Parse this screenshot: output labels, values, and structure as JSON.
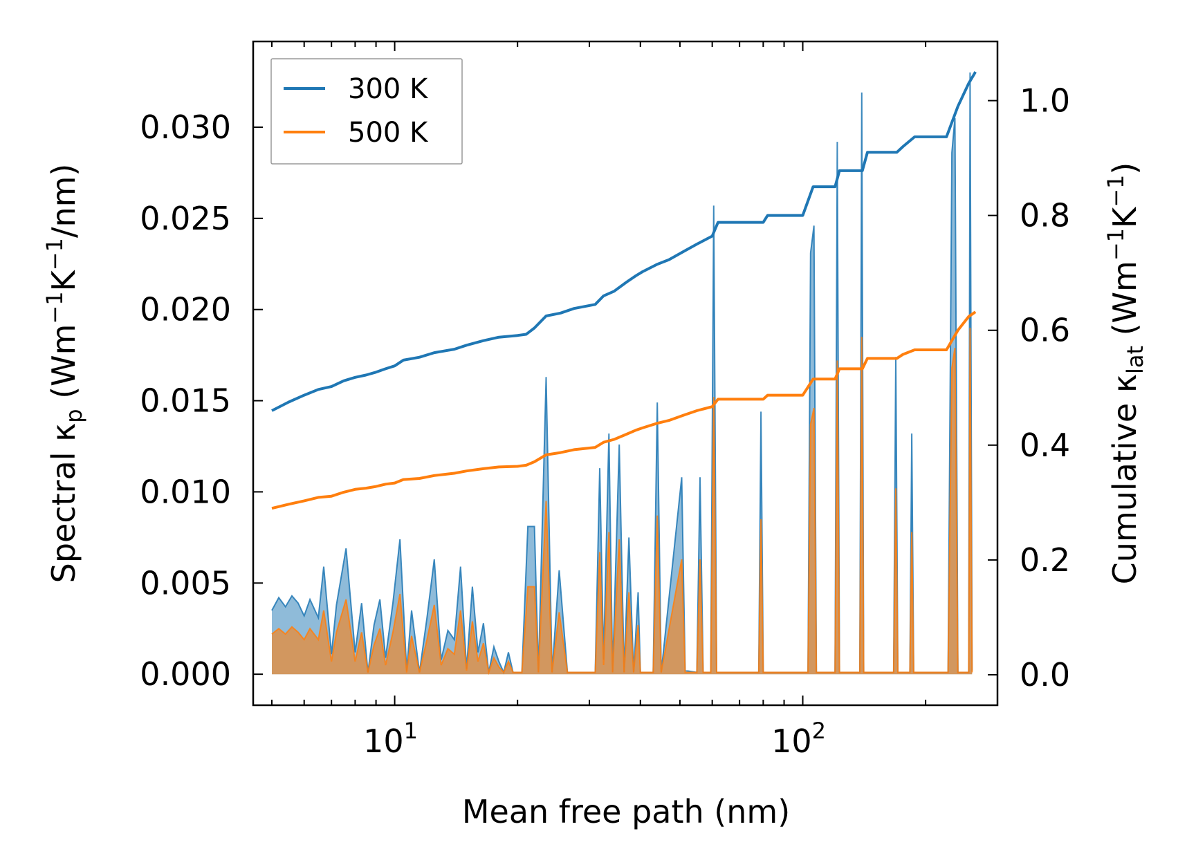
{
  "chart_data": {
    "type": "line",
    "x_scale": "log",
    "xlabel": "Mean free path (nm)",
    "xlim": [
      4.5,
      300
    ],
    "x_ticks": [
      {
        "value": 10,
        "base": "10",
        "exp": "1"
      },
      {
        "value": 100,
        "base": "10",
        "exp": "2"
      }
    ],
    "left_axis": {
      "label_parts": {
        "main": "Spectral κ",
        "sub": "p",
        "unit_pre": " (Wm",
        "sup1": "−1",
        "mid": "K",
        "sup2": "−1",
        "unit_post": "/nm)"
      },
      "ylim": [
        -0.0017,
        0.0347
      ],
      "ticks": [
        0.0,
        0.005,
        0.01,
        0.015,
        0.02,
        0.025,
        0.03
      ],
      "tick_labels": [
        "0.000",
        "0.005",
        "0.010",
        "0.015",
        "0.020",
        "0.025",
        "0.030"
      ]
    },
    "right_axis": {
      "label_parts": {
        "main": "Cumulative κ",
        "sub": "lat",
        "unit_pre": " (Wm",
        "sup1": "−1",
        "mid": "K",
        "sup2": "−1",
        "unit_post": ")"
      },
      "ylim": [
        -0.053,
        1.103
      ],
      "ticks": [
        0.0,
        0.2,
        0.4,
        0.6,
        0.8,
        1.0
      ],
      "tick_labels": [
        "0.0",
        "0.2",
        "0.4",
        "0.6",
        "0.8",
        "1.0"
      ]
    },
    "legend": {
      "position": "top-left",
      "entries": [
        "300 K",
        "500 K"
      ]
    },
    "series": [
      {
        "name": "300 K",
        "color": "#1f77b4",
        "cumulative": [
          [
            5.0,
            0.46
          ],
          [
            5.5,
            0.475
          ],
          [
            6.0,
            0.487
          ],
          [
            6.5,
            0.497
          ],
          [
            7.0,
            0.502
          ],
          [
            7.5,
            0.512
          ],
          [
            8.0,
            0.518
          ],
          [
            8.5,
            0.522
          ],
          [
            9.0,
            0.527
          ],
          [
            9.5,
            0.533
          ],
          [
            10.0,
            0.538
          ],
          [
            10.5,
            0.548
          ],
          [
            11.5,
            0.553
          ],
          [
            12.5,
            0.561
          ],
          [
            14.0,
            0.567
          ],
          [
            15.0,
            0.574
          ],
          [
            16.5,
            0.582
          ],
          [
            18.0,
            0.588
          ],
          [
            20.0,
            0.591
          ],
          [
            21.0,
            0.593
          ],
          [
            22.0,
            0.604
          ],
          [
            23.5,
            0.625
          ],
          [
            25.5,
            0.63
          ],
          [
            27.5,
            0.638
          ],
          [
            31.0,
            0.645
          ],
          [
            32.5,
            0.66
          ],
          [
            34.5,
            0.668
          ],
          [
            37.0,
            0.684
          ],
          [
            39.0,
            0.695
          ],
          [
            40.5,
            0.702
          ],
          [
            44.0,
            0.715
          ],
          [
            47.0,
            0.723
          ],
          [
            51.0,
            0.737
          ],
          [
            55.0,
            0.75
          ],
          [
            60.0,
            0.764
          ],
          [
            62.0,
            0.788
          ],
          [
            80.0,
            0.788
          ],
          [
            82.0,
            0.8
          ],
          [
            100.0,
            0.8
          ],
          [
            106.0,
            0.85
          ],
          [
            120.0,
            0.85
          ],
          [
            123.0,
            0.878
          ],
          [
            140.0,
            0.878
          ],
          [
            144.0,
            0.91
          ],
          [
            170.0,
            0.91
          ],
          [
            176.0,
            0.92
          ],
          [
            188.0,
            0.937
          ],
          [
            225.0,
            0.937
          ],
          [
            240.0,
            0.99
          ],
          [
            255.0,
            1.03
          ],
          [
            265.0,
            1.05
          ]
        ],
        "spectral": [
          [
            5.0,
            0.0035
          ],
          [
            5.2,
            0.0042
          ],
          [
            5.4,
            0.0037
          ],
          [
            5.6,
            0.0043
          ],
          [
            5.8,
            0.0039
          ],
          [
            6.0,
            0.0032
          ],
          [
            6.2,
            0.0041
          ],
          [
            6.5,
            0.0031
          ],
          [
            6.7,
            0.0059
          ],
          [
            7.0,
            0.0011
          ],
          [
            7.2,
            0.0038
          ],
          [
            7.6,
            0.0069
          ],
          [
            8.0,
            0.0012
          ],
          [
            8.3,
            0.0039
          ],
          [
            8.6,
            0.0001
          ],
          [
            8.9,
            0.0027
          ],
          [
            9.2,
            0.0041
          ],
          [
            9.5,
            0.0009
          ],
          [
            9.9,
            0.0039
          ],
          [
            10.3,
            0.0074
          ],
          [
            10.7,
            0.0002
          ],
          [
            11.0,
            0.0035
          ],
          [
            11.5,
            0.0001
          ],
          [
            12.0,
            0.0031
          ],
          [
            12.5,
            0.0063
          ],
          [
            13.0,
            0.0008
          ],
          [
            13.5,
            0.0024
          ],
          [
            14.0,
            0.0019
          ],
          [
            14.5,
            0.0059
          ],
          [
            15.0,
            0.0003
          ],
          [
            15.5,
            0.0048
          ],
          [
            16.0,
            0.0012
          ],
          [
            16.5,
            0.0028
          ],
          [
            17.0,
            0.0001
          ],
          [
            17.5,
            0.0015
          ],
          [
            18.0,
            0.0007
          ],
          [
            18.5,
            0.0001
          ],
          [
            19.0,
            0.0012
          ],
          [
            19.5,
            0.0001
          ],
          [
            20.5,
            0.0001
          ],
          [
            21.2,
            0.0081
          ],
          [
            22.0,
            0.0081
          ],
          [
            22.5,
            0.0001
          ],
          [
            23.5,
            0.0163
          ],
          [
            24.3,
            0.0001
          ],
          [
            25.3,
            0.0057
          ],
          [
            26.5,
            0.0001
          ],
          [
            27.0,
            0.0001
          ],
          [
            31.0,
            0.0001
          ],
          [
            31.8,
            0.0113
          ],
          [
            32.5,
            0.0008
          ],
          [
            33.5,
            0.0132
          ],
          [
            34.2,
            0.0001
          ],
          [
            35.5,
            0.0126
          ],
          [
            36.5,
            0.0001
          ],
          [
            37.5,
            0.0075
          ],
          [
            38.5,
            0.0001
          ],
          [
            39.5,
            0.0045
          ],
          [
            40.0,
            0.0001
          ],
          [
            43.0,
            0.0001
          ],
          [
            44.0,
            0.0149
          ],
          [
            45.0,
            0.0001
          ],
          [
            50.5,
            0.0108
          ],
          [
            51.5,
            0.0002
          ],
          [
            55.0,
            0.0001
          ],
          [
            56.0,
            0.0108
          ],
          [
            57.0,
            0.0001
          ],
          [
            59.5,
            0.0001
          ],
          [
            60.5,
            0.0257
          ],
          [
            61.5,
            0.0001
          ],
          [
            78.0,
            0.0001
          ],
          [
            79.0,
            0.0144
          ],
          [
            80.0,
            0.0001
          ],
          [
            103.0,
            0.0001
          ],
          [
            104.5,
            0.0231
          ],
          [
            106.5,
            0.0246
          ],
          [
            108.0,
            0.0001
          ],
          [
            120.0,
            0.0001
          ],
          [
            121.5,
            0.0292
          ],
          [
            123.0,
            0.0001
          ],
          [
            138.0,
            0.0001
          ],
          [
            139.5,
            0.0319
          ],
          [
            141.0,
            0.0001
          ],
          [
            167.0,
            0.0001
          ],
          [
            169.0,
            0.0174
          ],
          [
            171.0,
            0.0001
          ],
          [
            183.0,
            0.0001
          ],
          [
            185.0,
            0.0132
          ],
          [
            187.0,
            0.0001
          ],
          [
            227.0,
            0.0001
          ],
          [
            232.0,
            0.0286
          ],
          [
            236.0,
            0.0305
          ],
          [
            240.0,
            0.0001
          ],
          [
            255.0,
            0.0001
          ],
          [
            257.0,
            0.033
          ],
          [
            260.0,
            0.0002
          ]
        ]
      },
      {
        "name": "500 K",
        "color": "#ff7f0e",
        "cumulative": [
          [
            5.0,
            0.29
          ],
          [
            5.5,
            0.297
          ],
          [
            6.0,
            0.303
          ],
          [
            6.5,
            0.309
          ],
          [
            7.0,
            0.311
          ],
          [
            7.5,
            0.318
          ],
          [
            8.0,
            0.323
          ],
          [
            8.5,
            0.325
          ],
          [
            9.0,
            0.328
          ],
          [
            9.5,
            0.332
          ],
          [
            10.0,
            0.334
          ],
          [
            10.5,
            0.34
          ],
          [
            11.5,
            0.342
          ],
          [
            12.5,
            0.347
          ],
          [
            14.0,
            0.351
          ],
          [
            15.0,
            0.355
          ],
          [
            16.5,
            0.359
          ],
          [
            18.0,
            0.362
          ],
          [
            20.0,
            0.363
          ],
          [
            21.0,
            0.365
          ],
          [
            22.0,
            0.371
          ],
          [
            23.5,
            0.383
          ],
          [
            25.5,
            0.387
          ],
          [
            27.5,
            0.392
          ],
          [
            31.0,
            0.396
          ],
          [
            32.5,
            0.405
          ],
          [
            34.5,
            0.41
          ],
          [
            37.0,
            0.419
          ],
          [
            39.0,
            0.426
          ],
          [
            40.5,
            0.43
          ],
          [
            44.0,
            0.438
          ],
          [
            47.0,
            0.443
          ],
          [
            51.0,
            0.452
          ],
          [
            55.0,
            0.46
          ],
          [
            60.0,
            0.467
          ],
          [
            62.0,
            0.48
          ],
          [
            80.0,
            0.48
          ],
          [
            82.0,
            0.487
          ],
          [
            100.0,
            0.487
          ],
          [
            106.0,
            0.515
          ],
          [
            120.0,
            0.515
          ],
          [
            123.0,
            0.533
          ],
          [
            140.0,
            0.533
          ],
          [
            144.0,
            0.551
          ],
          [
            170.0,
            0.551
          ],
          [
            176.0,
            0.558
          ],
          [
            188.0,
            0.566
          ],
          [
            225.0,
            0.566
          ],
          [
            240.0,
            0.6
          ],
          [
            255.0,
            0.624
          ],
          [
            265.0,
            0.632
          ]
        ],
        "spectral": [
          [
            5.0,
            0.0022
          ],
          [
            5.2,
            0.0025
          ],
          [
            5.4,
            0.0022
          ],
          [
            5.6,
            0.0026
          ],
          [
            5.8,
            0.0023
          ],
          [
            6.0,
            0.0019
          ],
          [
            6.2,
            0.0025
          ],
          [
            6.5,
            0.0019
          ],
          [
            6.7,
            0.0035
          ],
          [
            7.0,
            0.0007
          ],
          [
            7.2,
            0.0023
          ],
          [
            7.6,
            0.0041
          ],
          [
            8.0,
            0.0007
          ],
          [
            8.3,
            0.0023
          ],
          [
            8.6,
            0.0001
          ],
          [
            8.9,
            0.0016
          ],
          [
            9.2,
            0.0025
          ],
          [
            9.5,
            0.0005
          ],
          [
            9.9,
            0.0023
          ],
          [
            10.3,
            0.0044
          ],
          [
            10.7,
            0.0001
          ],
          [
            11.0,
            0.0021
          ],
          [
            11.5,
            0.0001
          ],
          [
            12.0,
            0.0019
          ],
          [
            12.5,
            0.0038
          ],
          [
            13.0,
            0.0005
          ],
          [
            13.5,
            0.0014
          ],
          [
            14.0,
            0.0011
          ],
          [
            14.5,
            0.0035
          ],
          [
            15.0,
            0.0002
          ],
          [
            15.5,
            0.0029
          ],
          [
            16.0,
            0.0007
          ],
          [
            16.5,
            0.0017
          ],
          [
            17.0,
            0.0001
          ],
          [
            17.5,
            0.0009
          ],
          [
            18.0,
            0.0004
          ],
          [
            18.5,
            0.0001
          ],
          [
            19.0,
            0.0007
          ],
          [
            19.5,
            0.0001
          ],
          [
            20.5,
            0.0001
          ],
          [
            21.2,
            0.0048
          ],
          [
            22.0,
            0.0048
          ],
          [
            22.5,
            0.0001
          ],
          [
            23.5,
            0.0095
          ],
          [
            24.3,
            0.0001
          ],
          [
            25.3,
            0.0034
          ],
          [
            26.5,
            0.0001
          ],
          [
            27.0,
            0.0001
          ],
          [
            31.0,
            0.0001
          ],
          [
            31.8,
            0.0067
          ],
          [
            32.5,
            0.0005
          ],
          [
            33.5,
            0.0078
          ],
          [
            34.2,
            0.0001
          ],
          [
            35.5,
            0.0074
          ],
          [
            36.5,
            0.0001
          ],
          [
            37.5,
            0.0045
          ],
          [
            38.5,
            0.0001
          ],
          [
            39.5,
            0.0027
          ],
          [
            40.0,
            0.0001
          ],
          [
            43.0,
            0.0001
          ],
          [
            44.0,
            0.0087
          ],
          [
            45.0,
            0.0001
          ],
          [
            50.5,
            0.0063
          ],
          [
            51.5,
            0.0001
          ],
          [
            55.0,
            0.0001
          ],
          [
            56.0,
            0.0063
          ],
          [
            57.0,
            0.0001
          ],
          [
            59.5,
            0.0001
          ],
          [
            60.5,
            0.0152
          ],
          [
            61.5,
            0.0001
          ],
          [
            78.0,
            0.0001
          ],
          [
            79.0,
            0.0085
          ],
          [
            80.0,
            0.0001
          ],
          [
            103.0,
            0.0001
          ],
          [
            104.5,
            0.0137
          ],
          [
            106.5,
            0.0146
          ],
          [
            108.0,
            0.0001
          ],
          [
            120.0,
            0.0001
          ],
          [
            121.5,
            0.0172
          ],
          [
            123.0,
            0.0001
          ],
          [
            138.0,
            0.0001
          ],
          [
            139.5,
            0.0185
          ],
          [
            141.0,
            0.0001
          ],
          [
            167.0,
            0.0001
          ],
          [
            169.0,
            0.0102
          ],
          [
            171.0,
            0.0001
          ],
          [
            183.0,
            0.0001
          ],
          [
            185.0,
            0.0078
          ],
          [
            187.0,
            0.0001
          ],
          [
            227.0,
            0.0001
          ],
          [
            232.0,
            0.0168
          ],
          [
            236.0,
            0.0179
          ],
          [
            240.0,
            0.0001
          ],
          [
            255.0,
            0.0001
          ],
          [
            257.0,
            0.019
          ],
          [
            260.0,
            0.0001
          ]
        ]
      }
    ]
  }
}
